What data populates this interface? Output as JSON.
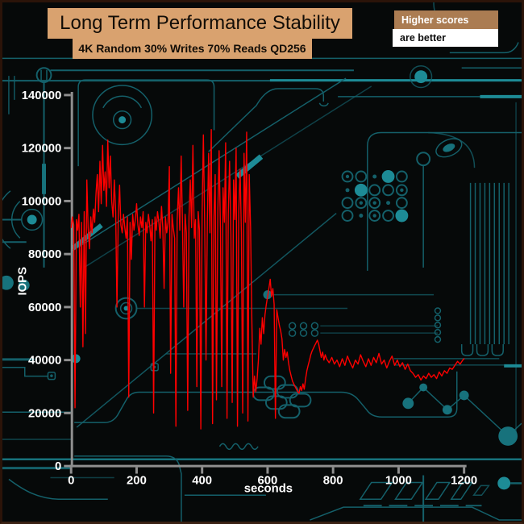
{
  "header": {
    "title": "Long Term Performance Stability",
    "subtitle": "4K Random 30% Writes 70% Reads QD256"
  },
  "badge": {
    "line1": "Higher scores",
    "line2": "are better"
  },
  "colors": {
    "background": "#060909",
    "frame_border": "#2b1409",
    "title_box": "#d9a26f",
    "badge_top_bg": "#ab7c52",
    "badge_bottom_bg": "#ffffff",
    "circuit_trace": "#14606a",
    "circuit_bright": "#1d8b96",
    "circuit_fill": "#17727c",
    "axis": "#8f8f8f",
    "tick_text": "#ffffff",
    "series_red": "#ff0000"
  },
  "chart_data": {
    "type": "line",
    "title": "Long Term Performance Stability",
    "subtitle": "4K Random 30% Writes 70% Reads QD256",
    "xlabel": "seconds",
    "ylabel": "IOPS",
    "xlim": [
      0,
      1200
    ],
    "ylim": [
      0,
      140000
    ],
    "x_ticks": [
      0,
      200,
      400,
      600,
      800,
      1000,
      1200
    ],
    "y_ticks": [
      0,
      20000,
      40000,
      60000,
      80000,
      100000,
      120000,
      140000
    ],
    "grid": false,
    "legend": null,
    "axis_color": "#8f8f8f",
    "series": [
      {
        "name": "IOPS",
        "color": "#ff0000",
        "points": [
          [
            0,
            90000
          ],
          [
            4,
            94000
          ],
          [
            8,
            91000
          ],
          [
            12,
            22000
          ],
          [
            16,
            93000
          ],
          [
            20,
            89000
          ],
          [
            24,
            95000
          ],
          [
            28,
            60000
          ],
          [
            32,
            92000
          ],
          [
            36,
            45000
          ],
          [
            40,
            96000
          ],
          [
            44,
            50000
          ],
          [
            48,
            108000
          ],
          [
            52,
            90000
          ],
          [
            56,
            82000
          ],
          [
            60,
            94000
          ],
          [
            64,
            88000
          ],
          [
            68,
            97000
          ],
          [
            72,
            92000
          ],
          [
            76,
            103000
          ],
          [
            80,
            110000
          ],
          [
            84,
            96000
          ],
          [
            88,
            115000
          ],
          [
            92,
            99000
          ],
          [
            96,
            121000
          ],
          [
            100,
            104000
          ],
          [
            104,
            111000
          ],
          [
            108,
            98000
          ],
          [
            112,
            123000
          ],
          [
            116,
            105000
          ],
          [
            120,
            117000
          ],
          [
            124,
            100000
          ],
          [
            128,
            94000
          ],
          [
            132,
            108000
          ],
          [
            136,
            96000
          ],
          [
            140,
            60000
          ],
          [
            144,
            93000
          ],
          [
            148,
            106000
          ],
          [
            152,
            91000
          ],
          [
            156,
            88000
          ],
          [
            160,
            95000
          ],
          [
            164,
            90000
          ],
          [
            168,
            86000
          ],
          [
            172,
            94000
          ],
          [
            176,
            26000
          ],
          [
            180,
            92000
          ],
          [
            184,
            78000
          ],
          [
            188,
            95000
          ],
          [
            192,
            89000
          ],
          [
            196,
            93000
          ],
          [
            200,
            99000
          ],
          [
            204,
            91000
          ],
          [
            208,
            87000
          ],
          [
            212,
            94000
          ],
          [
            216,
            90000
          ],
          [
            220,
            96000
          ],
          [
            224,
            60000
          ],
          [
            228,
            92000
          ],
          [
            232,
            88000
          ],
          [
            236,
            95000
          ],
          [
            240,
            91000
          ],
          [
            244,
            85000
          ],
          [
            248,
            93000
          ],
          [
            252,
            20000
          ],
          [
            256,
            94000
          ],
          [
            260,
            89000
          ],
          [
            264,
            96000
          ],
          [
            268,
            92000
          ],
          [
            272,
            86000
          ],
          [
            276,
            98000
          ],
          [
            280,
            90000
          ],
          [
            284,
            67000
          ],
          [
            288,
            94000
          ],
          [
            292,
            88000
          ],
          [
            296,
            92000
          ],
          [
            300,
            113000
          ],
          [
            304,
            35000
          ],
          [
            308,
            95000
          ],
          [
            312,
            90000
          ],
          [
            316,
            86000
          ],
          [
            320,
            15000
          ],
          [
            324,
            93000
          ],
          [
            328,
            105000
          ],
          [
            332,
            89000
          ],
          [
            336,
            117000
          ],
          [
            340,
            92000
          ],
          [
            344,
            60000
          ],
          [
            348,
            95000
          ],
          [
            352,
            88000
          ],
          [
            356,
            21000
          ],
          [
            360,
            94000
          ],
          [
            364,
            108000
          ],
          [
            368,
            90000
          ],
          [
            372,
            121000
          ],
          [
            376,
            86000
          ],
          [
            380,
            93000
          ],
          [
            384,
            30000
          ],
          [
            388,
            96000
          ],
          [
            392,
            89000
          ],
          [
            396,
            14000
          ],
          [
            400,
            95000
          ],
          [
            404,
            125000
          ],
          [
            408,
            90000
          ],
          [
            412,
            40000
          ],
          [
            416,
            93000
          ],
          [
            420,
            118000
          ],
          [
            424,
            88000
          ],
          [
            428,
            127000
          ],
          [
            432,
            16000
          ],
          [
            436,
            94000
          ],
          [
            440,
            110000
          ],
          [
            444,
            25000
          ],
          [
            448,
            96000
          ],
          [
            452,
            119000
          ],
          [
            456,
            89000
          ],
          [
            460,
            30000
          ],
          [
            464,
            105000
          ],
          [
            468,
            92000
          ],
          [
            472,
            122000
          ],
          [
            476,
            18000
          ],
          [
            480,
            95000
          ],
          [
            484,
            115000
          ],
          [
            488,
            87000
          ],
          [
            492,
            24000
          ],
          [
            496,
            108000
          ],
          [
            500,
            93000
          ],
          [
            504,
            120000
          ],
          [
            508,
            15000
          ],
          [
            512,
            96000
          ],
          [
            516,
            112000
          ],
          [
            520,
            88000
          ],
          [
            524,
            20000
          ],
          [
            528,
            118000
          ],
          [
            532,
            92000
          ],
          [
            536,
            126000
          ],
          [
            540,
            17000
          ],
          [
            544,
            110000
          ],
          [
            548,
            90000
          ],
          [
            552,
            55000
          ],
          [
            556,
            26000
          ],
          [
            560,
            34000
          ],
          [
            564,
            28000
          ],
          [
            568,
            33000
          ],
          [
            572,
            40000
          ],
          [
            576,
            52000
          ],
          [
            580,
            46000
          ],
          [
            584,
            56000
          ],
          [
            588,
            50000
          ],
          [
            592,
            57000
          ],
          [
            596,
            61000
          ],
          [
            600,
            64000
          ],
          [
            604,
            67000
          ],
          [
            608,
            70500
          ],
          [
            612,
            64000
          ],
          [
            616,
            67000
          ],
          [
            620,
            61000
          ],
          [
            624,
            18000
          ],
          [
            628,
            59000
          ],
          [
            632,
            56000
          ],
          [
            636,
            53000
          ],
          [
            640,
            51000
          ],
          [
            644,
            48000
          ],
          [
            648,
            40000
          ],
          [
            652,
            44000
          ],
          [
            656,
            41000
          ],
          [
            660,
            43000
          ],
          [
            664,
            39000
          ],
          [
            668,
            36000
          ],
          [
            672,
            34000
          ],
          [
            676,
            32000
          ],
          [
            680,
            31000
          ],
          [
            684,
            30000
          ],
          [
            688,
            29000
          ],
          [
            692,
            28000
          ],
          [
            696,
            27500
          ],
          [
            700,
            30000
          ],
          [
            704,
            28500
          ],
          [
            708,
            31000
          ],
          [
            712,
            29000
          ],
          [
            716,
            33000
          ],
          [
            720,
            36000
          ],
          [
            724,
            38000
          ],
          [
            728,
            40000
          ],
          [
            732,
            42000
          ],
          [
            736,
            43500
          ],
          [
            740,
            44500
          ],
          [
            744,
            45500
          ],
          [
            748,
            46500
          ],
          [
            752,
            47500
          ],
          [
            756,
            46000
          ],
          [
            760,
            43500
          ],
          [
            764,
            41000
          ],
          [
            768,
            43000
          ],
          [
            772,
            40000
          ],
          [
            776,
            42000
          ],
          [
            780,
            40500
          ],
          [
            788,
            39000
          ],
          [
            796,
            41000
          ],
          [
            804,
            38500
          ],
          [
            812,
            40000
          ],
          [
            820,
            37500
          ],
          [
            828,
            40500
          ],
          [
            836,
            38000
          ],
          [
            844,
            41500
          ],
          [
            852,
            39000
          ],
          [
            860,
            37000
          ],
          [
            868,
            40000
          ],
          [
            876,
            38500
          ],
          [
            884,
            42000
          ],
          [
            892,
            39500
          ],
          [
            900,
            37500
          ],
          [
            908,
            40500
          ],
          [
            916,
            38000
          ],
          [
            924,
            41000
          ],
          [
            932,
            39000
          ],
          [
            940,
            42500
          ],
          [
            948,
            38500
          ],
          [
            956,
            40000
          ],
          [
            964,
            37000
          ],
          [
            972,
            39500
          ],
          [
            980,
            41500
          ],
          [
            988,
            38000
          ],
          [
            996,
            40000
          ],
          [
            1004,
            37500
          ],
          [
            1012,
            39000
          ],
          [
            1020,
            36500
          ],
          [
            1028,
            38500
          ],
          [
            1036,
            36000
          ],
          [
            1044,
            35000
          ],
          [
            1052,
            33500
          ],
          [
            1060,
            34500
          ],
          [
            1068,
            32500
          ],
          [
            1076,
            34000
          ],
          [
            1084,
            33000
          ],
          [
            1092,
            35000
          ],
          [
            1100,
            33500
          ],
          [
            1108,
            34500
          ],
          [
            1116,
            33000
          ],
          [
            1124,
            35500
          ],
          [
            1132,
            34000
          ],
          [
            1140,
            36000
          ],
          [
            1148,
            35000
          ],
          [
            1156,
            37000
          ],
          [
            1164,
            36500
          ],
          [
            1172,
            38000
          ],
          [
            1180,
            39500
          ],
          [
            1188,
            38500
          ],
          [
            1196,
            40000
          ],
          [
            1200,
            40500
          ]
        ]
      }
    ]
  }
}
